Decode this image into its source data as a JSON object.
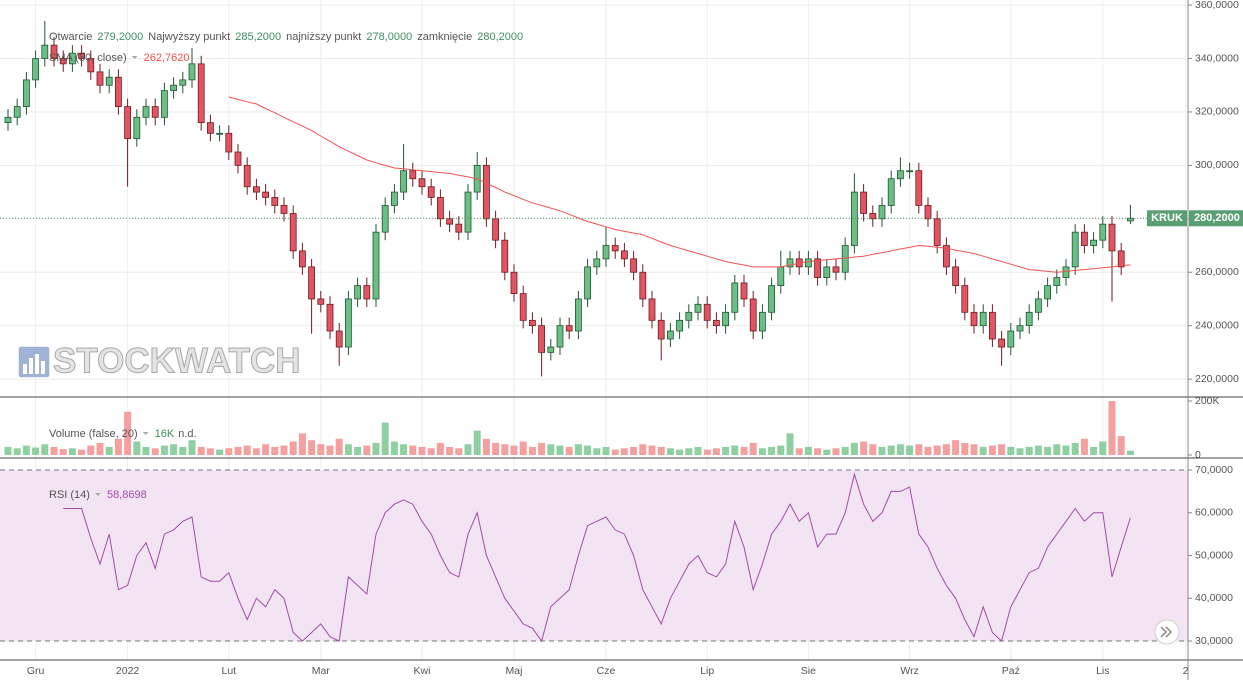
{
  "chart_data": [
    {
      "type": "candlestick",
      "categories": [
        null,
        null,
        null,
        "Gru",
        null,
        null,
        null,
        null,
        null,
        null,
        null,
        null,
        null,
        "2022",
        null,
        null,
        null,
        null,
        null,
        null,
        null,
        null,
        null,
        null,
        "Lut",
        null,
        null,
        null,
        null,
        null,
        null,
        null,
        null,
        null,
        "Mar",
        null,
        null,
        null,
        null,
        null,
        null,
        null,
        null,
        null,
        null,
        "Kwi",
        null,
        null,
        null,
        null,
        null,
        null,
        null,
        null,
        null,
        "Maj",
        null,
        null,
        null,
        null,
        null,
        null,
        null,
        null,
        null,
        "Cze",
        null,
        null,
        null,
        null,
        null,
        null,
        null,
        null,
        null,
        null,
        "Lip",
        null,
        null,
        null,
        null,
        null,
        null,
        null,
        null,
        null,
        null,
        "Sie",
        null,
        null,
        null,
        null,
        null,
        null,
        null,
        null,
        null,
        null,
        "Wrz",
        null,
        null,
        null,
        null,
        null,
        null,
        null,
        null,
        null,
        null,
        "Paź",
        null,
        null,
        null,
        null,
        null,
        null,
        null,
        null,
        null,
        "Lis",
        null,
        null,
        null,
        null,
        null,
        null,
        null,
        null,
        "2"
      ],
      "open": [
        316,
        318,
        322,
        332,
        340,
        345,
        340,
        338,
        342,
        340,
        335,
        330,
        333,
        322,
        310,
        318,
        322,
        318,
        328,
        330,
        332,
        338,
        316,
        312,
        312,
        305,
        300,
        292,
        290,
        288,
        285,
        282,
        268,
        262,
        250,
        248,
        238,
        232,
        250,
        255,
        250,
        275,
        285,
        290,
        298,
        295,
        292,
        288,
        280,
        278,
        275,
        290,
        300,
        280,
        272,
        260,
        252,
        242,
        240,
        230,
        232,
        240,
        238,
        250,
        262,
        265,
        270,
        268,
        265,
        260,
        250,
        242,
        235,
        238,
        242,
        245,
        248,
        242,
        240,
        245,
        256,
        250,
        238,
        245,
        255,
        262,
        265,
        262,
        265,
        258,
        262,
        260,
        270,
        290,
        282,
        280,
        285,
        295,
        298,
        298,
        285,
        280,
        270,
        262,
        255,
        245,
        240,
        245,
        235,
        232,
        238,
        240,
        245,
        250,
        255,
        258,
        262,
        275,
        270,
        272,
        278,
        268,
        279.2,
        null,
        null,
        null,
        null,
        null,
        null
      ],
      "high": [
        321,
        325,
        335,
        343,
        354,
        348,
        343,
        345,
        345,
        343,
        338,
        336,
        336,
        325,
        321,
        325,
        325,
        331,
        333,
        335,
        344,
        341,
        319,
        315,
        315,
        308,
        303,
        295,
        293,
        291,
        288,
        285,
        271,
        265,
        253,
        251,
        241,
        253,
        258,
        258,
        278,
        288,
        293,
        308,
        301,
        298,
        295,
        291,
        283,
        281,
        293,
        305,
        303,
        283,
        275,
        263,
        255,
        245,
        243,
        235,
        243,
        243,
        253,
        265,
        268,
        277,
        273,
        271,
        268,
        263,
        253,
        245,
        241,
        245,
        248,
        251,
        251,
        245,
        248,
        259,
        259,
        253,
        248,
        258,
        268,
        268,
        268,
        268,
        268,
        265,
        265,
        273,
        297,
        293,
        285,
        288,
        298,
        303,
        301,
        301,
        288,
        283,
        273,
        265,
        258,
        248,
        248,
        248,
        238,
        241,
        243,
        248,
        253,
        258,
        261,
        265,
        278,
        278,
        275,
        281,
        281,
        271,
        285.2,
        null,
        null,
        null,
        null,
        null,
        null
      ],
      "low": [
        313,
        315,
        319,
        329,
        337,
        337,
        335,
        335,
        337,
        332,
        327,
        327,
        319,
        292,
        307,
        315,
        315,
        315,
        325,
        327,
        329,
        313,
        309,
        309,
        302,
        297,
        289,
        287,
        285,
        282,
        279,
        265,
        259,
        237,
        245,
        235,
        225,
        229,
        247,
        247,
        247,
        272,
        282,
        287,
        292,
        289,
        285,
        277,
        275,
        272,
        272,
        287,
        277,
        269,
        257,
        249,
        239,
        237,
        221,
        227,
        229,
        235,
        235,
        247,
        259,
        262,
        265,
        262,
        257,
        247,
        239,
        227,
        232,
        235,
        239,
        242,
        239,
        237,
        237,
        242,
        247,
        235,
        235,
        242,
        252,
        259,
        259,
        259,
        255,
        255,
        257,
        257,
        267,
        279,
        277,
        277,
        282,
        292,
        295,
        282,
        277,
        267,
        259,
        252,
        242,
        237,
        237,
        232,
        225,
        229,
        235,
        237,
        242,
        247,
        252,
        255,
        259,
        267,
        267,
        269,
        249,
        259,
        278,
        null,
        null,
        null,
        null,
        null,
        null
      ],
      "close": [
        318,
        322,
        332,
        340,
        345,
        340,
        338,
        342,
        340,
        335,
        330,
        333,
        322,
        310,
        318,
        322,
        318,
        328,
        330,
        332,
        338,
        316,
        312,
        312,
        305,
        300,
        292,
        290,
        288,
        285,
        282,
        268,
        262,
        250,
        248,
        238,
        232,
        250,
        255,
        250,
        275,
        285,
        290,
        298,
        295,
        292,
        288,
        280,
        278,
        275,
        290,
        300,
        280,
        272,
        260,
        252,
        242,
        240,
        230,
        232,
        240,
        238,
        250,
        262,
        265,
        270,
        268,
        265,
        260,
        250,
        242,
        235,
        238,
        242,
        245,
        248,
        242,
        240,
        245,
        256,
        250,
        238,
        245,
        255,
        262,
        265,
        262,
        265,
        258,
        262,
        260,
        270,
        290,
        282,
        280,
        285,
        295,
        298,
        298,
        285,
        280,
        270,
        262,
        255,
        245,
        240,
        245,
        235,
        232,
        238,
        240,
        245,
        250,
        255,
        258,
        262,
        275,
        270,
        272,
        278,
        268,
        262,
        280.2,
        null,
        null,
        null,
        null,
        null,
        null
      ],
      "up_color": "#6cbf84",
      "down_color": "#e05561",
      "up_border": "#225533",
      "down_border": "#6b1d22",
      "overlay": {
        "name": "SMA (50, close)",
        "legend_value": "262,7620",
        "color": "#ef5350",
        "values": [
          null,
          null,
          null,
          null,
          null,
          null,
          null,
          null,
          null,
          null,
          null,
          null,
          null,
          null,
          null,
          null,
          null,
          null,
          null,
          null,
          null,
          null,
          null,
          null,
          325.6,
          324.7,
          323.8,
          323,
          321.3,
          319.7,
          318,
          316.3,
          314.7,
          313,
          311,
          309,
          307,
          305.3,
          303.7,
          302,
          301,
          300,
          299,
          298.7,
          298.3,
          298,
          297.7,
          297.3,
          297,
          296.3,
          295.7,
          295,
          293.3,
          291.7,
          290,
          288.7,
          287.3,
          286,
          285,
          284,
          283,
          281.7,
          280.3,
          279,
          278,
          277,
          276,
          275.3,
          274.7,
          274,
          272.7,
          271.3,
          270,
          269,
          268,
          267,
          266,
          265,
          264,
          263.3,
          262.7,
          262,
          262,
          262,
          262,
          262.7,
          263.3,
          264,
          264.3,
          264.7,
          265,
          265.3,
          265.7,
          266,
          266.7,
          267.3,
          268,
          268.7,
          269.3,
          270,
          269.7,
          269.3,
          269,
          268.3,
          267.7,
          267,
          266,
          265,
          264,
          263,
          262,
          261,
          260.7,
          260.3,
          260,
          260.3,
          260.7,
          261,
          261.3,
          261.7,
          262,
          262.4,
          262.762,
          null,
          null,
          null,
          null,
          null,
          null
        ]
      },
      "legend": [
        {
          "label": "Otwarcie",
          "value": "279,2000"
        },
        {
          "label": "Najwyższy punkt",
          "value": "285,2000"
        },
        {
          "label": "najniższy punkt",
          "value": "278,0000"
        },
        {
          "label": "zamknięcie",
          "value": "280,2000"
        }
      ],
      "price_tag": {
        "symbol": "KRUK",
        "value": "280,2000",
        "color": "#5a9e73"
      },
      "watermark": "STOCKWATCH",
      "ylim": [
        213.3,
        361.9
      ],
      "yticks": [
        {
          "value": 220,
          "label": "220,0000"
        },
        {
          "value": 240,
          "label": "240,0000"
        },
        {
          "value": 260,
          "label": "260,0000"
        },
        {
          "value": 280,
          "label": "280,0000"
        },
        {
          "value": 300,
          "label": "300,0000"
        },
        {
          "value": 320,
          "label": "320,0000"
        },
        {
          "value": 340,
          "label": "340,0000"
        },
        {
          "value": 360,
          "label": "360,0000"
        }
      ],
      "grid": true
    },
    {
      "type": "bar",
      "name": "Volume (false, 20)",
      "legend_value": "16K",
      "legend_note": "n.d.",
      "up_color": "#8fd0a3",
      "down_color": "#f5a0a0",
      "values": [
        30000,
        25000,
        35000,
        28000,
        40000,
        30000,
        22000,
        25000,
        20000,
        35000,
        45000,
        30000,
        60000,
        160000,
        50000,
        30000,
        25000,
        35000,
        40000,
        30000,
        55000,
        30000,
        25000,
        20000,
        25000,
        30000,
        35000,
        25000,
        40000,
        30000,
        35000,
        50000,
        80000,
        55000,
        40000,
        35000,
        60000,
        40000,
        30000,
        35000,
        45000,
        120000,
        50000,
        40000,
        35000,
        30000,
        25000,
        45000,
        30000,
        25000,
        40000,
        90000,
        60000,
        45000,
        40000,
        35000,
        50000,
        30000,
        45000,
        40000,
        35000,
        30000,
        40000,
        35000,
        25000,
        30000,
        20000,
        25000,
        30000,
        40000,
        35000,
        30000,
        25000,
        20000,
        25000,
        30000,
        20000,
        25000,
        30000,
        35000,
        30000,
        45000,
        25000,
        30000,
        35000,
        80000,
        25000,
        30000,
        25000,
        20000,
        25000,
        30000,
        45000,
        50000,
        40000,
        30000,
        35000,
        40000,
        35000,
        40000,
        30000,
        35000,
        40000,
        55000,
        45000,
        40000,
        30000,
        35000,
        40000,
        30000,
        25000,
        30000,
        35000,
        30000,
        40000,
        35000,
        45000,
        60000,
        30000,
        50000,
        200000,
        70000,
        16000,
        null,
        null,
        null,
        null,
        null,
        null
      ],
      "ylim": [
        -11000,
        211000
      ],
      "yticks": [
        0,
        {
          "value": 200000,
          "label": "200K"
        }
      ]
    },
    {
      "type": "line",
      "name": "RSI (14)",
      "legend_value": "58,8698",
      "color": "#a24ca6",
      "band": [
        30,
        70
      ],
      "band_color": "#f3e4f4",
      "values": [
        null,
        null,
        null,
        null,
        null,
        null,
        61,
        61,
        61,
        54,
        48,
        55,
        42,
        43,
        50,
        53,
        47,
        55,
        56,
        58,
        59,
        45,
        44,
        44,
        46,
        40,
        35,
        40,
        38,
        42,
        40,
        32,
        30,
        32,
        34,
        31,
        30,
        45,
        43,
        41,
        55,
        60,
        62,
        63,
        62,
        58,
        55,
        50,
        46,
        45,
        55,
        60,
        50,
        45,
        40,
        37,
        34,
        33,
        30,
        38,
        40,
        42,
        50,
        57,
        58,
        59,
        56,
        55,
        50,
        42,
        38,
        34,
        40,
        44,
        48,
        50,
        46,
        45,
        48,
        58,
        52,
        42,
        48,
        55,
        58,
        62,
        58,
        60,
        52,
        55,
        55,
        60,
        69,
        62,
        58,
        60,
        65,
        65,
        66,
        55,
        52,
        47,
        43,
        40,
        35,
        31,
        38,
        32,
        30,
        38,
        42,
        46,
        47,
        52,
        55,
        58,
        61,
        58,
        60,
        60,
        45,
        52,
        58.8698,
        null,
        null,
        null,
        null,
        null,
        null
      ],
      "ylim": [
        25.56,
        72.34
      ],
      "yticks": [
        {
          "value": 30,
          "label": "30,0000"
        },
        {
          "value": 40,
          "label": "40,0000"
        },
        {
          "value": 50,
          "label": "50,0000"
        },
        {
          "value": 60,
          "label": "60,0000"
        },
        {
          "value": 70,
          "label": "70,0000"
        }
      ]
    }
  ]
}
